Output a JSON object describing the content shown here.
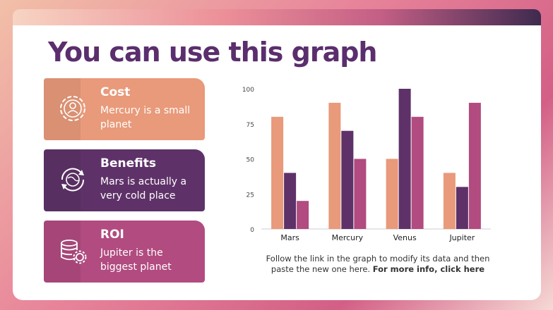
{
  "title": "You can use this graph",
  "cards": [
    {
      "title": "Cost",
      "text": "Mercury is a small planet",
      "icon": "gear-person-icon",
      "color": "#e89a7a"
    },
    {
      "title": "Benefits",
      "text": "Mars is actually a very cold place",
      "icon": "globe-cycle-icon",
      "color": "#5e3268"
    },
    {
      "title": "ROI",
      "text": "Jupiter is the biggest planet",
      "icon": "database-gear-icon",
      "color": "#b14b80"
    }
  ],
  "caption": {
    "text": "Follow the link in the graph to modify its data and then paste the new one here.",
    "link": "For more info, click here"
  },
  "chart_data": {
    "type": "bar",
    "categories": [
      "Mars",
      "Mercury",
      "Venus",
      "Jupiter"
    ],
    "series": [
      {
        "values": [
          80,
          90,
          50,
          40
        ],
        "color": "#e89a7a"
      },
      {
        "values": [
          40,
          70,
          100,
          30
        ],
        "color": "#5e3268"
      },
      {
        "values": [
          20,
          50,
          80,
          90
        ],
        "color": "#b14b80"
      }
    ],
    "yticks": [
      0,
      25,
      50,
      75,
      100
    ],
    "ylim": [
      0,
      100
    ],
    "grid": false
  }
}
